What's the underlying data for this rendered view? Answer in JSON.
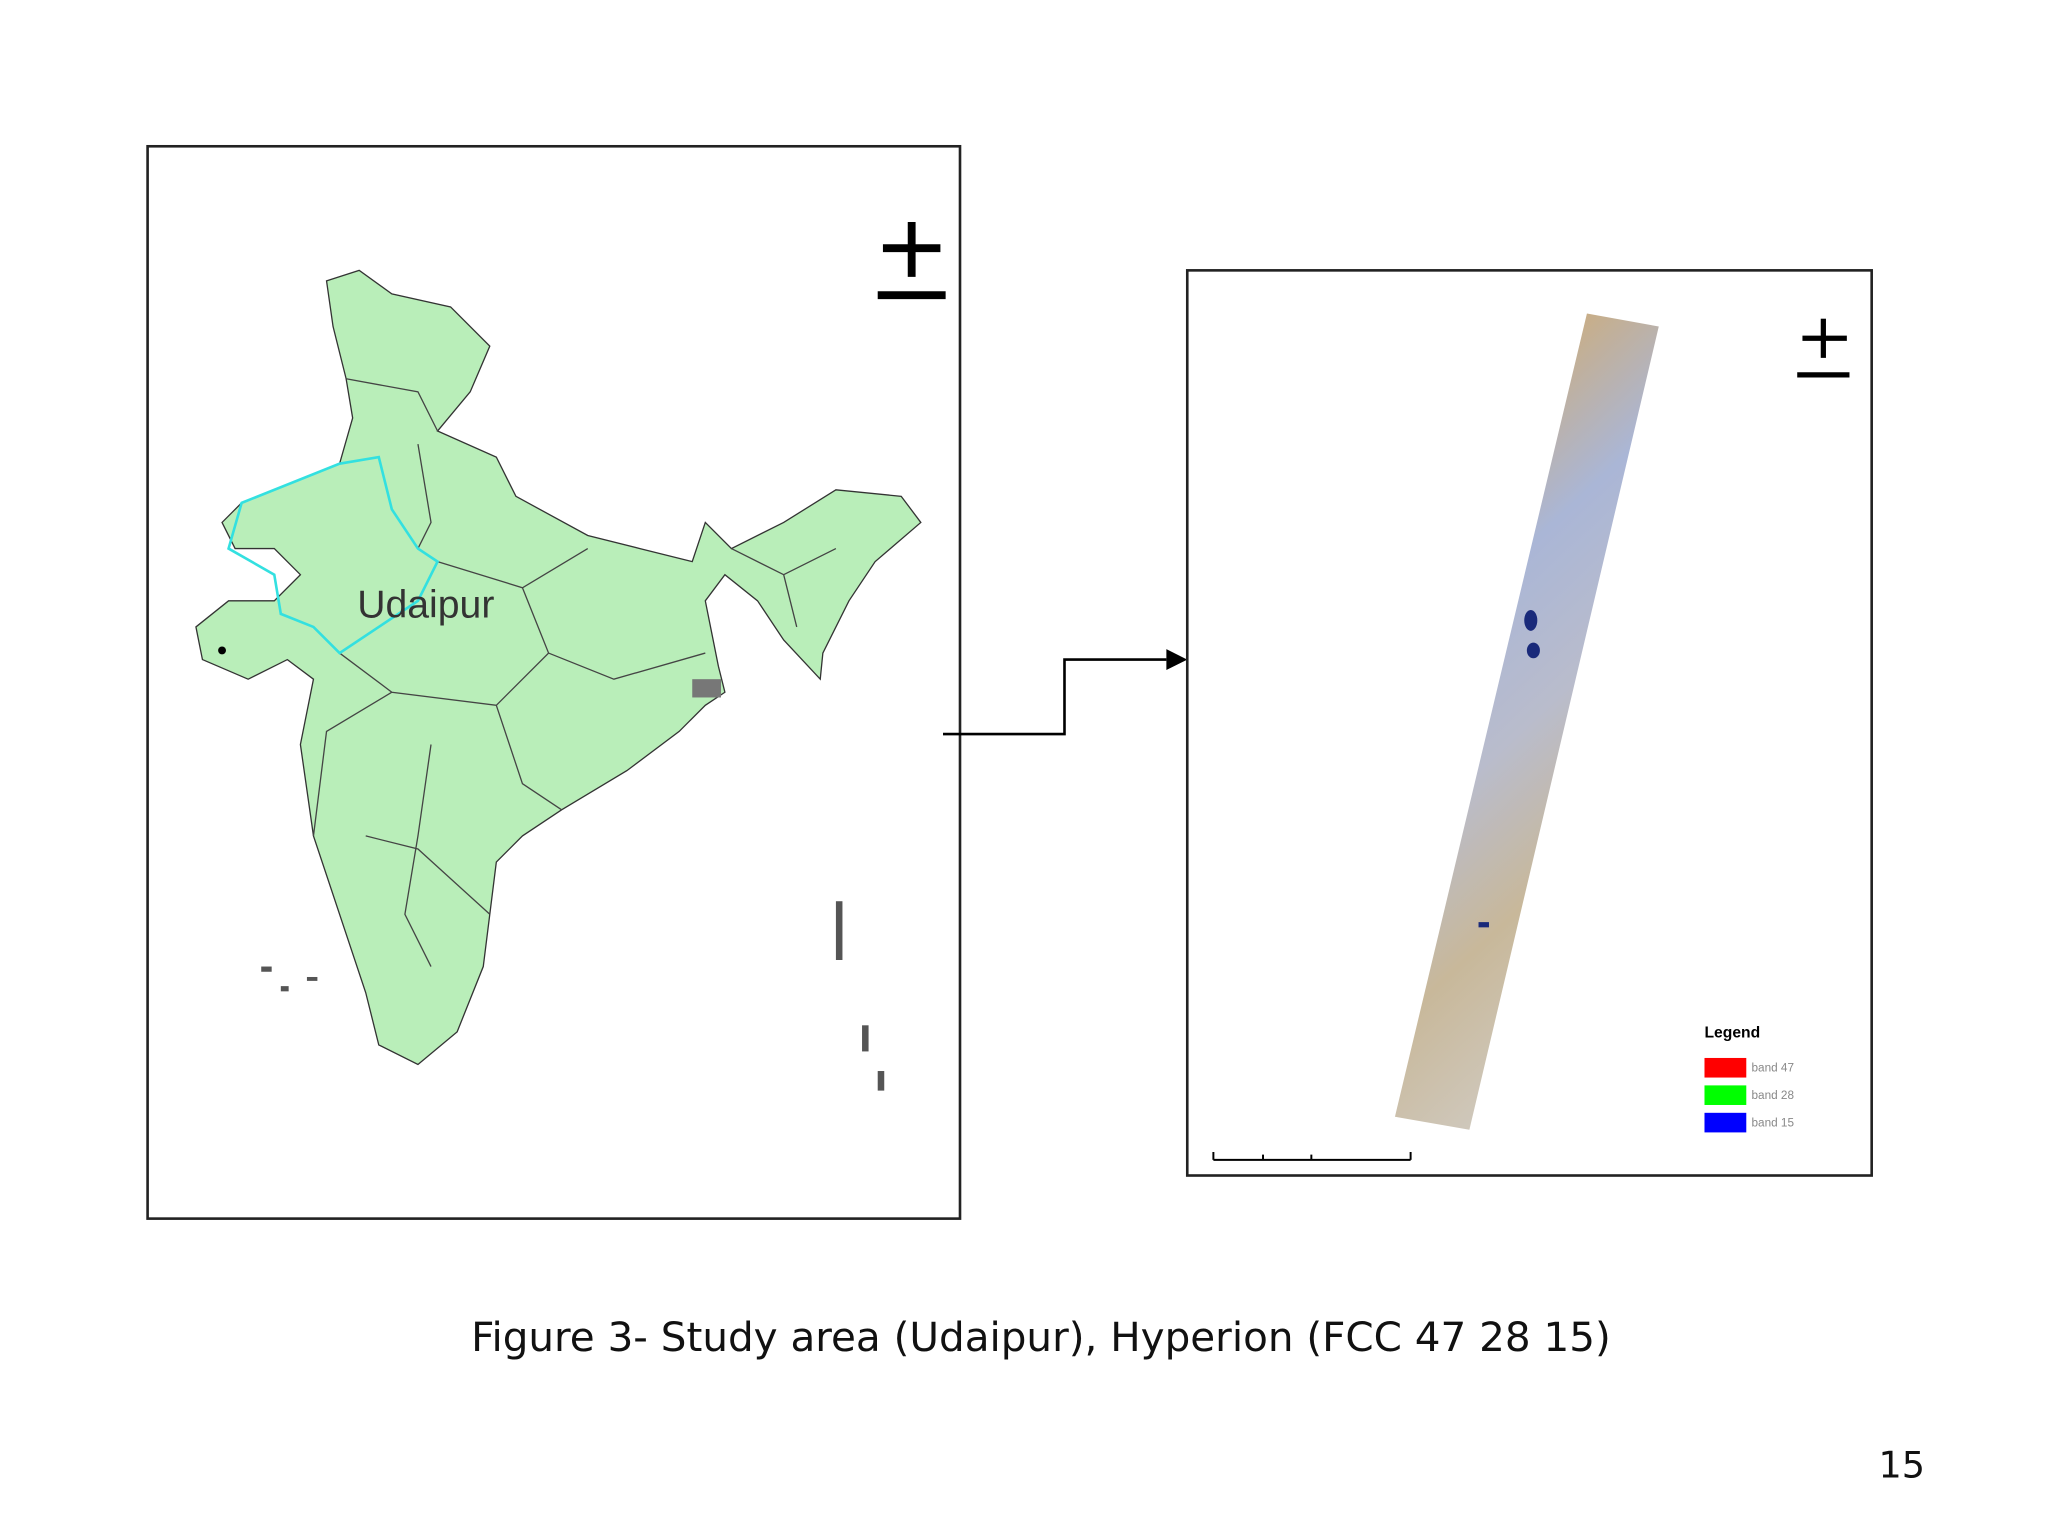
{
  "figure": {
    "map_label": "Udaipur",
    "legend": {
      "title": "Legend",
      "items": [
        "band 47",
        "band 28",
        "band 15"
      ]
    }
  },
  "caption": "Figure 3- Study area (Udaipur), Hyperion (FCC 47 28 15)",
  "page_number": "15"
}
